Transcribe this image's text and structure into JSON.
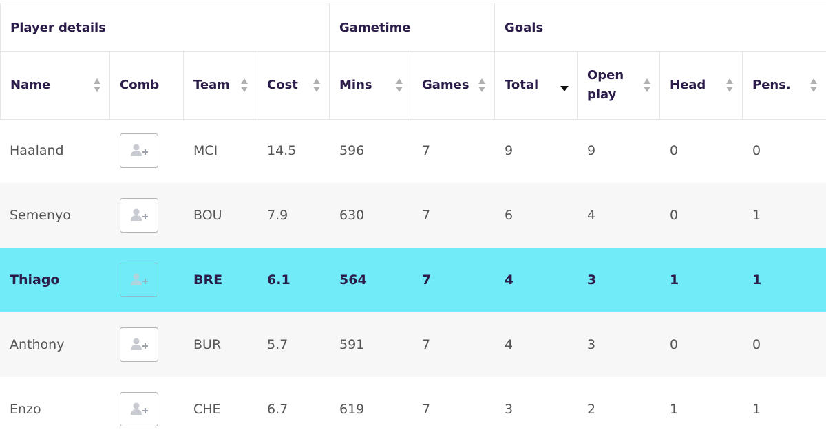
{
  "groups": {
    "player_details": "Player details",
    "gametime": "Gametime",
    "goals": "Goals"
  },
  "columns": {
    "name": "Name",
    "comb": "Comb",
    "team": "Team",
    "cost": "Cost",
    "mins": "Mins",
    "games": "Games",
    "total": "Total",
    "open_play_line1": "Open",
    "open_play_line2": "play",
    "head": "Head",
    "pens": "Pens."
  },
  "sorted_column": "total",
  "highlight_color": "#72ebf8",
  "rows": [
    {
      "name": "Haaland",
      "team": "MCI",
      "cost": "14.5",
      "mins": "596",
      "games": "7",
      "total": "9",
      "open_play": "9",
      "head": "0",
      "pens": "0",
      "comb_icon": "add-user-icon"
    },
    {
      "name": "Semenyo",
      "team": "BOU",
      "cost": "7.9",
      "mins": "630",
      "games": "7",
      "total": "6",
      "open_play": "4",
      "head": "0",
      "pens": "1",
      "comb_icon": "add-user-icon"
    },
    {
      "name": "Thiago",
      "team": "BRE",
      "cost": "6.1",
      "mins": "564",
      "games": "7",
      "total": "4",
      "open_play": "3",
      "head": "1",
      "pens": "1",
      "comb_icon": "add-user-icon",
      "highlighted": true
    },
    {
      "name": "Anthony",
      "team": "BUR",
      "cost": "5.7",
      "mins": "591",
      "games": "7",
      "total": "4",
      "open_play": "3",
      "head": "0",
      "pens": "0",
      "comb_icon": "add-user-icon"
    },
    {
      "name": "Enzo",
      "team": "CHE",
      "cost": "6.7",
      "mins": "619",
      "games": "7",
      "total": "3",
      "open_play": "2",
      "head": "1",
      "pens": "1",
      "comb_icon": "add-user-icon"
    }
  ]
}
